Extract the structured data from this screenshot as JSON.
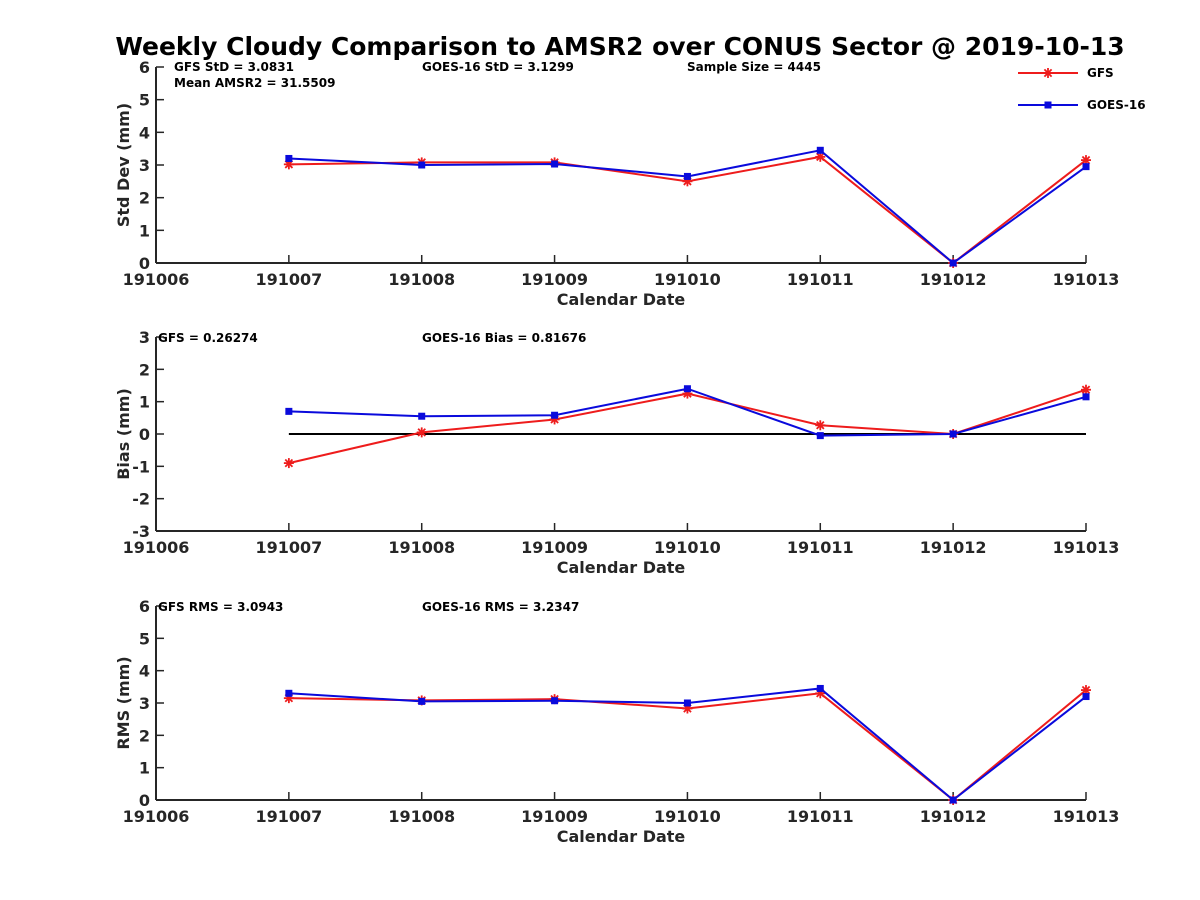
{
  "colors": {
    "gfs": "#ee1c1c",
    "goes": "#0a0adc",
    "axis": "#262626",
    "zero_line": "#000000"
  },
  "legend": {
    "entries": [
      {
        "name": "GFS",
        "marker": "asterisk",
        "color": "#ee1c1c"
      },
      {
        "name": "GOES-16",
        "marker": "square",
        "color": "#0a0adc"
      }
    ],
    "location": "top-right"
  },
  "chart_data": [
    {
      "type": "line",
      "title": "Weekly Cloudy Comparison to AMSR2 over CONUS Sector @ 2019-10-13",
      "xlabel": "Calendar Date",
      "ylabel": "Std Dev (mm)",
      "categories": [
        "191006",
        "191007",
        "191008",
        "191009",
        "191010",
        "191011",
        "191012",
        "191013"
      ],
      "ylim": [
        0,
        6
      ],
      "yticks": [
        "0",
        "1",
        "2",
        "3",
        "4",
        "5",
        "6"
      ],
      "series": [
        {
          "name": "GFS",
          "values": [
            null,
            3.02,
            3.08,
            3.08,
            2.5,
            3.25,
            0.0,
            3.15
          ]
        },
        {
          "name": "GOES-16",
          "values": [
            null,
            3.2,
            3.0,
            3.03,
            2.65,
            3.45,
            0.0,
            2.95
          ]
        }
      ],
      "annotations": [
        {
          "text": "GFS StD = 3.0831"
        },
        {
          "text": "Mean AMSR2 = 31.5509"
        },
        {
          "text": "GOES-16 StD = 3.1299"
        },
        {
          "text": "Sample Size = 4445"
        }
      ]
    },
    {
      "type": "line",
      "title": "",
      "xlabel": "Calendar Date",
      "ylabel": "Bias (mm)",
      "categories": [
        "191006",
        "191007",
        "191008",
        "191009",
        "191010",
        "191011",
        "191012",
        "191013"
      ],
      "ylim": [
        -3,
        3
      ],
      "yticks": [
        "-3",
        "-2",
        "-1",
        "0",
        "1",
        "2",
        "3"
      ],
      "zero_line": {
        "y": 0,
        "from": "191007",
        "to": "191013"
      },
      "series": [
        {
          "name": "GFS",
          "values": [
            null,
            -0.9,
            0.05,
            0.45,
            1.25,
            0.27,
            0.0,
            1.37
          ]
        },
        {
          "name": "GOES-16",
          "values": [
            null,
            0.7,
            0.55,
            0.58,
            1.4,
            -0.05,
            0.0,
            1.15
          ]
        }
      ],
      "annotations": [
        {
          "text": "GFS = 0.26274"
        },
        {
          "text": "GOES-16 Bias  = 0.81676"
        }
      ]
    },
    {
      "type": "line",
      "title": "",
      "xlabel": "Calendar Date",
      "ylabel": "RMS (mm)",
      "categories": [
        "191006",
        "191007",
        "191008",
        "191009",
        "191010",
        "191011",
        "191012",
        "191013"
      ],
      "ylim": [
        0,
        6
      ],
      "yticks": [
        "0",
        "1",
        "2",
        "3",
        "4",
        "5",
        "6"
      ],
      "series": [
        {
          "name": "GFS",
          "values": [
            null,
            3.15,
            3.08,
            3.12,
            2.83,
            3.3,
            0.0,
            3.4
          ]
        },
        {
          "name": "GOES-16",
          "values": [
            null,
            3.3,
            3.05,
            3.07,
            3.0,
            3.45,
            0.0,
            3.2
          ]
        }
      ],
      "annotations": [
        {
          "text": "GFS RMS = 3.0943"
        },
        {
          "text": "GOES-16 RMS = 3.2347"
        }
      ]
    }
  ]
}
